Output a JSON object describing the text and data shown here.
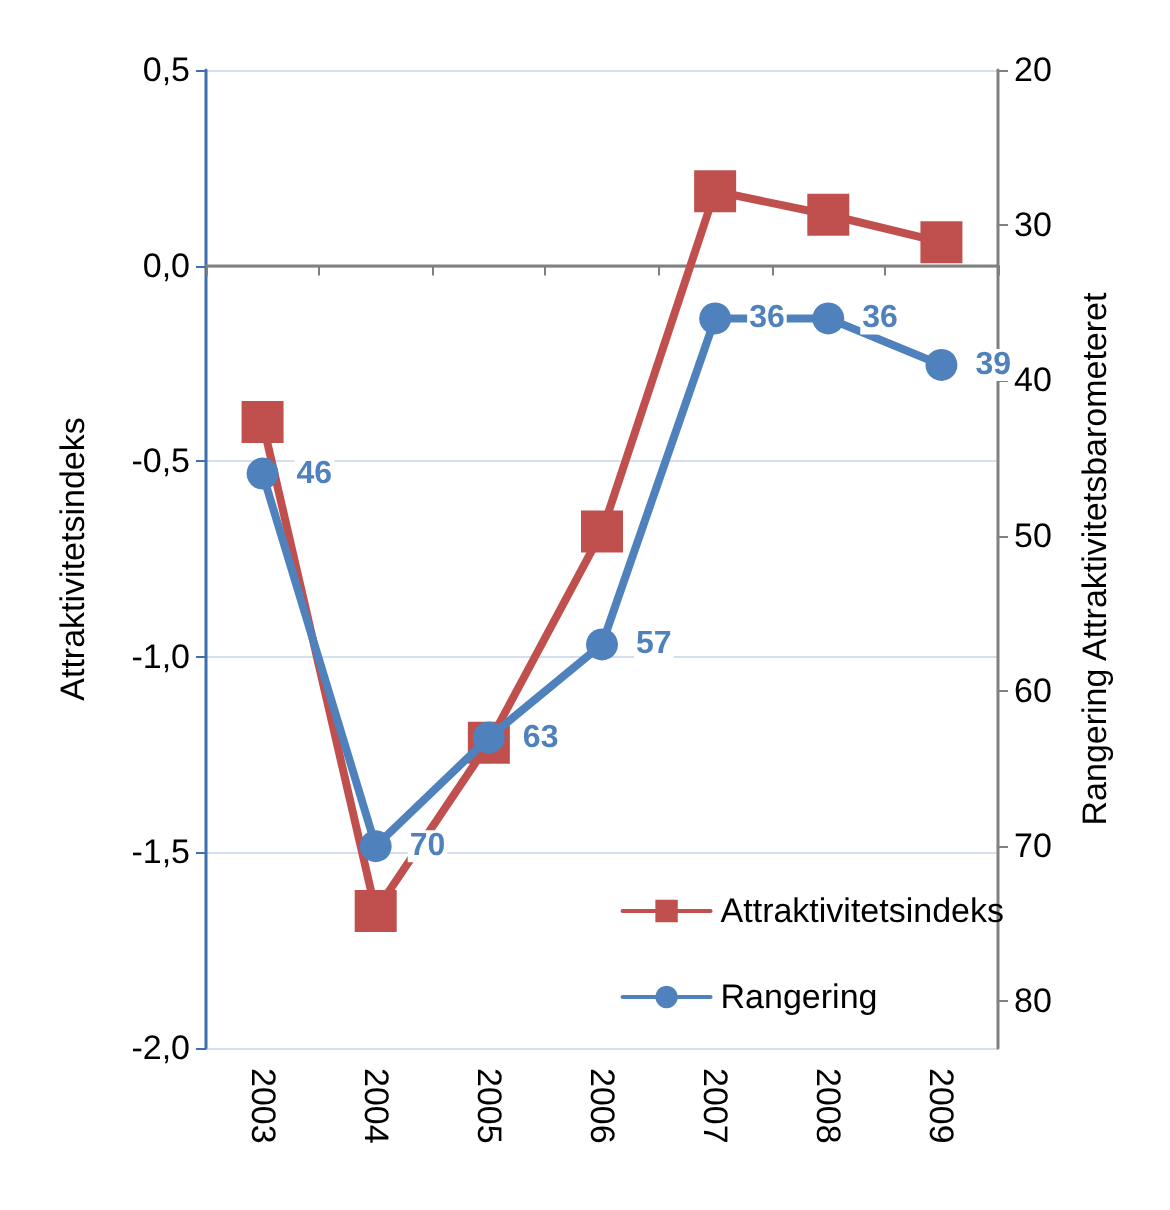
{
  "chart_data": {
    "type": "line",
    "categories": [
      "2003",
      "2004",
      "2005",
      "2006",
      "2007",
      "2008",
      "2009"
    ],
    "series": [
      {
        "name": "Attraktivitetsindeks",
        "color": "#c0504d",
        "marker": "square",
        "values": [
          -0.4,
          -1.65,
          -1.22,
          -0.68,
          0.19,
          0.13,
          0.06
        ]
      },
      {
        "name": "Rangering",
        "color": "#4f81bd",
        "marker": "circle",
        "axis": "y2",
        "data_labels": true,
        "values": [
          46,
          70,
          63,
          57,
          36,
          36,
          39
        ]
      }
    ],
    "ylabel": "Attraktivitetsindeks",
    "y2label": "Rangering Attraktivitetsbarometeret",
    "ylim": [
      -2.0,
      0.5
    ],
    "yticks": [
      {
        "value": 0.5,
        "label": "0,5"
      },
      {
        "value": 0.0,
        "label": "0,0"
      },
      {
        "value": -0.5,
        "label": "-0,5"
      },
      {
        "value": -1.0,
        "label": "-1,0"
      },
      {
        "value": -1.5,
        "label": "-1,5"
      },
      {
        "value": -2.0,
        "label": "-2,0"
      }
    ],
    "y2lim": [
      83,
      20
    ],
    "y2ticks": [
      20,
      30,
      40,
      50,
      60,
      70,
      80
    ],
    "grid": "y",
    "legend": "bottom right",
    "line_style": "solid"
  }
}
